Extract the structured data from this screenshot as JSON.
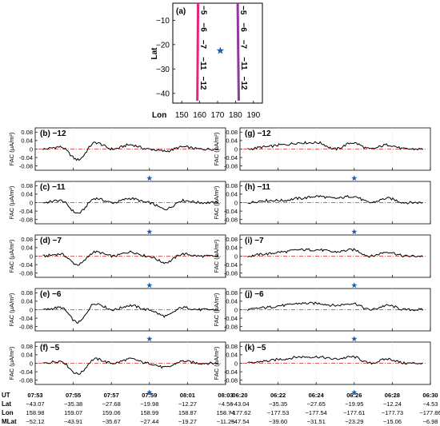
{
  "map": {
    "label": "(a)",
    "ylabel": "Lat",
    "xlabel": "Lon",
    "x_ticks": [
      "150",
      "160",
      "170",
      "180",
      "190"
    ],
    "y_ticks": [
      "−10",
      "−20",
      "−30",
      "−40"
    ],
    "track_labels": [
      "−5",
      "−6",
      "−7",
      "−11",
      "−12"
    ],
    "tracks": [
      {
        "color": "#e8237f",
        "lon_start": 159.1,
        "lon_end": 158.7,
        "lat_start": -3,
        "lat_end": -43
      },
      {
        "color": "#8e3a9d",
        "lon_start": 181.2,
        "lon_end": 181.8,
        "lat_start": -3,
        "lat_end": -43
      }
    ],
    "star": {
      "lon": 171.5,
      "lat": -22.5,
      "color": "#1f5fb0"
    }
  },
  "panels": {
    "ylabel": "FAC (μA/m²)",
    "y_ticks": [
      "0.08",
      "0.04",
      "0",
      "-0.04",
      "-0.08"
    ],
    "left": [
      {
        "label": "(b)",
        "track": "−12"
      },
      {
        "label": "(c)",
        "track": "−11"
      },
      {
        "label": "(d)",
        "track": "−7"
      },
      {
        "label": "(e)",
        "track": "−6"
      },
      {
        "label": "(f)",
        "track": "−5"
      }
    ],
    "right": [
      {
        "label": "(g)",
        "track": "−12"
      },
      {
        "label": "(h)",
        "track": "−11"
      },
      {
        "label": "(i)",
        "track": "−7"
      },
      {
        "label": "(j)",
        "track": "−6"
      },
      {
        "label": "(k)",
        "track": "−5"
      }
    ]
  },
  "axis_table": {
    "row_labels": [
      "UT",
      "Lat",
      "Lon",
      "MLat"
    ],
    "left": {
      "UT": [
        "07:53",
        "07:55",
        "07:57",
        "07:59",
        "08:01",
        "08:03"
      ],
      "Lat": [
        "−43.07",
        "−35.38",
        "−27.68",
        "−19.98",
        "−12.27",
        "−4.56"
      ],
      "Lon": [
        "158.98",
        "159.07",
        "159.06",
        "158.99",
        "158.87",
        "158.74"
      ],
      "MLat": [
        "−52.12",
        "−43.91",
        "−35.67",
        "−27.44",
        "−19.27",
        "−11.25"
      ]
    },
    "right": {
      "UT": [
        "06:20",
        "06:22",
        "06:24",
        "06:26",
        "06:28",
        "06:30"
      ],
      "Lat": [
        "−43.04",
        "−35.35",
        "−27.65",
        "−19.95",
        "−12.24",
        "−4.53"
      ],
      "Lon": [
        "−177.62",
        "−177.53",
        "−177.54",
        "−177.61",
        "−177.73",
        "−177.86"
      ],
      "MLat": [
        "−47.54",
        "−39.60",
        "−31.51",
        "−23.29",
        "−15.06",
        "−6.98"
      ]
    }
  },
  "chart_data": {
    "type": "line",
    "y_unit": "μA/m²",
    "ylim": [
      -0.1,
      0.1
    ],
    "colors": {
      "fac": "#000000",
      "reference": "#d62728",
      "star": "#1f5fb0"
    },
    "left_column": {
      "x": [
        "07:53",
        "07:54",
        "07:55",
        "07:56",
        "07:57",
        "07:58",
        "07:59",
        "08:00",
        "08:01",
        "08:02",
        "08:03"
      ],
      "star_ut": "07:59",
      "series": [
        {
          "panel": "(b)",
          "values": [
            0.0,
            0.01,
            -0.05,
            0.03,
            0.0,
            0.02,
            0.0,
            -0.01,
            0.01,
            0.0,
            0.0
          ]
        },
        {
          "panel": "(c)",
          "values": [
            0.0,
            0.01,
            -0.05,
            0.02,
            0.0,
            0.02,
            0.0,
            -0.03,
            0.01,
            0.0,
            0.0
          ]
        },
        {
          "panel": "(d)",
          "values": [
            0.0,
            0.01,
            -0.04,
            0.02,
            0.0,
            0.02,
            0.0,
            -0.03,
            0.01,
            0.0,
            0.0
          ]
        },
        {
          "panel": "(e)",
          "values": [
            0.0,
            0.01,
            -0.06,
            0.03,
            0.0,
            0.02,
            0.0,
            -0.03,
            0.01,
            0.0,
            0.0
          ]
        },
        {
          "panel": "(f)",
          "values": [
            0.0,
            0.01,
            -0.05,
            0.02,
            0.0,
            0.02,
            0.0,
            -0.02,
            0.01,
            0.0,
            0.0
          ]
        }
      ]
    },
    "right_column": {
      "x": [
        "06:20",
        "06:21",
        "06:22",
        "06:23",
        "06:24",
        "06:25",
        "06:26",
        "06:27",
        "06:28",
        "06:29",
        "06:30"
      ],
      "star_ut": "06:26",
      "series": [
        {
          "panel": "(g)",
          "values": [
            0.0,
            0.01,
            0.02,
            0.03,
            0.03,
            0.0,
            0.03,
            0.0,
            0.02,
            0.0,
            0.0
          ]
        },
        {
          "panel": "(h)",
          "values": [
            0.0,
            0.01,
            0.01,
            0.02,
            0.03,
            0.02,
            0.03,
            0.0,
            0.02,
            0.0,
            0.0
          ]
        },
        {
          "panel": "(i)",
          "values": [
            0.0,
            0.01,
            0.02,
            0.03,
            0.03,
            0.02,
            0.03,
            0.0,
            0.02,
            0.0,
            0.0
          ]
        },
        {
          "panel": "(j)",
          "values": [
            0.0,
            0.01,
            0.02,
            0.03,
            0.03,
            0.02,
            0.03,
            0.0,
            0.02,
            0.0,
            0.0
          ]
        },
        {
          "panel": "(k)",
          "values": [
            0.0,
            0.01,
            0.02,
            0.03,
            0.03,
            0.02,
            0.03,
            0.0,
            0.02,
            0.0,
            0.0
          ]
        }
      ]
    }
  }
}
